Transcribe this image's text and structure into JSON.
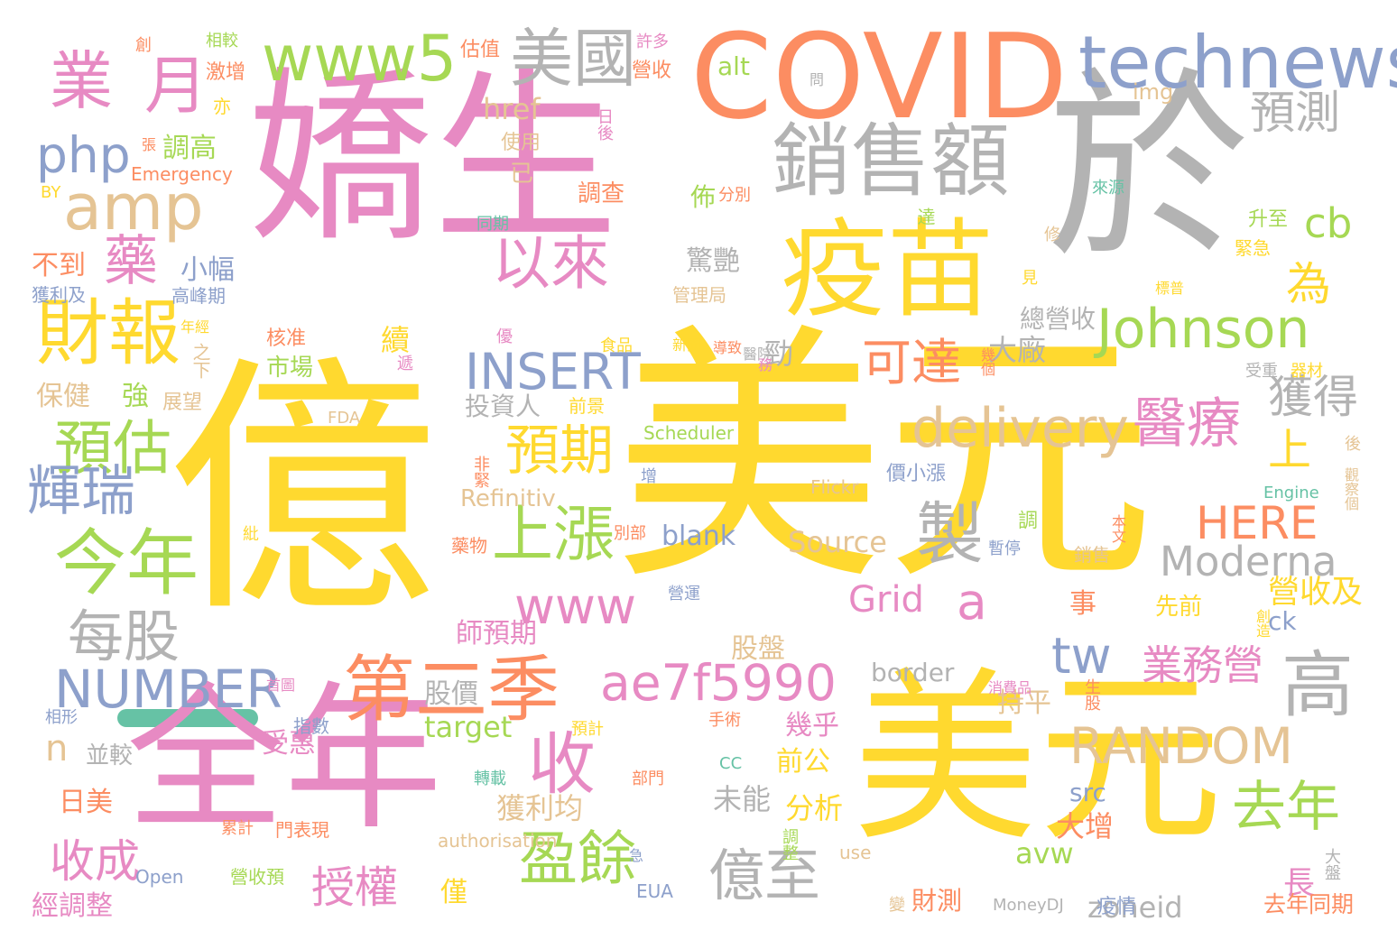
{
  "palette": {
    "pink": "#e78ac3",
    "yellow": "#ffd92f",
    "orange": "#fc8d62",
    "gray": "#b3b3b3",
    "blue": "#8da0cb",
    "green": "#a6d854",
    "tan": "#e5c494",
    "teal": "#66c2a5"
  },
  "words": [
    "億",
    "美元",
    "美元",
    "嬌生",
    "於",
    "全年",
    "COVID",
    "疫苗",
    "銷售額",
    "technews",
    "www5",
    "美國",
    "業",
    "月",
    "amp",
    "php",
    "藥",
    "財報",
    "以來",
    "Johnson",
    "預測",
    "cb",
    "為",
    "INSERT",
    "可達",
    "delivery",
    "醫療",
    "獲得",
    "預估",
    "預期",
    "上漲",
    "今年",
    "輝瑞",
    "製",
    "HERE",
    "上",
    "每股",
    "www",
    "a",
    "Moderna",
    "Grid",
    "NUMBER",
    "第二季",
    "ae7f5990",
    "tw",
    "高",
    "業務營",
    "營收及",
    "RANDOM",
    "收",
    "去年",
    "盈餘",
    "億至",
    "收成",
    "授權",
    "n",
    "target",
    "前公",
    "分析",
    "未能",
    "獲利均",
    "長",
    "大增",
    "avw",
    "zoneid",
    "去年同期",
    "財測",
    "調高",
    "Emergency",
    "調查",
    "估值",
    "營收",
    "alt",
    "img",
    "href",
    "使用",
    "已",
    "佈",
    "分別",
    "升至",
    "緊急",
    "不到",
    "小幅",
    "高峰期",
    "獲利及",
    "驚艷",
    "管理局",
    "總營收",
    "大廠",
    "勁",
    "續",
    "核准",
    "市場",
    "保健",
    "強",
    "展望",
    "投資人",
    "border",
    "持平",
    "股價",
    "股盤",
    "師預期",
    "Source",
    "blank",
    "Refinitiv",
    "Scheduler",
    "Flickr",
    "Engine",
    "authorisation",
    "use",
    "Open",
    "EUA",
    "MoneyDJ",
    "疫情",
    "經調整",
    "營收預",
    "日美",
    "並較",
    "受惠",
    "幾乎",
    "src",
    "ck",
    "事",
    "先前",
    "創造",
    "生股",
    "消費品",
    "指數",
    "首圖",
    "手術",
    "部門",
    "預計",
    "轉載",
    "CC",
    "相較",
    "激增",
    "亦",
    "來源",
    "創",
    "許多",
    "日後",
    "同期",
    "達",
    "修",
    "見",
    "標普",
    "新聞",
    "導致",
    "醫院",
    "務",
    "幾個",
    "受重",
    "器材",
    "前景",
    "FDA",
    "食品",
    "遞",
    "優",
    "之下",
    "年經",
    "後",
    "觀察個",
    "價小漲",
    "增",
    "非緊",
    "本文",
    "別部",
    "藥物",
    "暫停",
    "銷售",
    "營運",
    "調",
    "紕",
    "累計",
    "門表現",
    "調整",
    "急",
    "大盤",
    "變",
    "僅",
    "相形",
    "問",
    "BY",
    "張"
  ]
}
